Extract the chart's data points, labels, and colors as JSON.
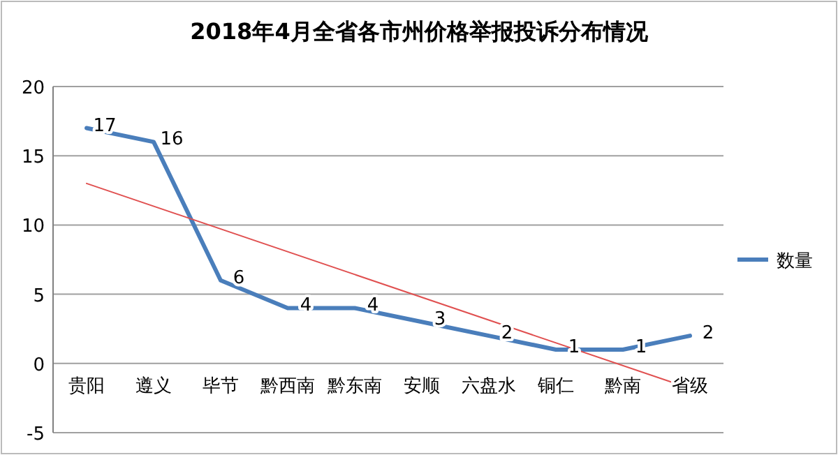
{
  "chart_data": {
    "type": "line",
    "title": "2018年4月全省各市州价格举报投诉分布情况",
    "categories": [
      "贵阳",
      "遵义",
      "毕节",
      "黔西南",
      "黔东南",
      "安顺",
      "六盘水",
      "铜仁",
      "黔南",
      "省级"
    ],
    "series": [
      {
        "name": "数量",
        "color": "#4a7ebb",
        "values": [
          17,
          16,
          6,
          4,
          4,
          3,
          2,
          1,
          1,
          2
        ],
        "value_labels": [
          "17",
          "16",
          "6",
          "4",
          "4",
          "3",
          "2",
          "1",
          "1",
          "2"
        ]
      },
      {
        "type": "line",
        "color": "#e05050",
        "x": [
          "贵阳",
          "省级"
        ],
        "values": [
          13.0,
          -1.8
        ]
      }
    ],
    "ylim": [
      -5,
      20
    ],
    "yticks": [
      -5,
      0,
      5,
      10,
      15,
      20
    ],
    "grid": "y",
    "legend": "right"
  }
}
